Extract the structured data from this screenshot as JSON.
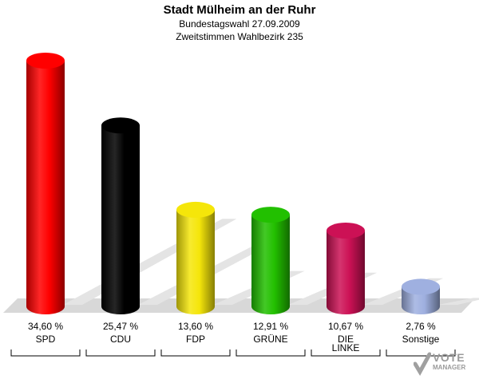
{
  "header": {
    "title": "Stadt Mülheim an der Ruhr",
    "subtitle1": "Bundestagswahl 27.09.2009",
    "subtitle2": "Zweitstimmen Wahlbezirk 235"
  },
  "logo": {
    "line1": "VOTE",
    "line2": "MANAGER"
  },
  "chart_data": {
    "type": "bar",
    "title": "Stadt Mülheim an der Ruhr",
    "subtitle": "Bundestagswahl 27.09.2009 / Zweitstimmen Wahlbezirk 235",
    "categories": [
      "SPD",
      "CDU",
      "FDP",
      "GRÜNE",
      "DIE LINKE",
      "Sonstige"
    ],
    "category_labels": [
      [
        "SPD"
      ],
      [
        "CDU"
      ],
      [
        "FDP"
      ],
      [
        "GRÜNE"
      ],
      [
        "DIE",
        "LINKE"
      ],
      [
        "Sonstige"
      ]
    ],
    "values": [
      34.6,
      25.47,
      13.6,
      12.91,
      10.67,
      2.76
    ],
    "value_labels": [
      "34,60 %",
      "25,47 %",
      "13,60 %",
      "12,91 %",
      "10,67 %",
      "2,76 %"
    ],
    "colors": [
      "#ff0000",
      "#000000",
      "#f5e60a",
      "#22c000",
      "#cc1155",
      "#9fb0e0"
    ],
    "ylim": [
      0,
      40
    ],
    "grid": false,
    "legend": "none"
  }
}
